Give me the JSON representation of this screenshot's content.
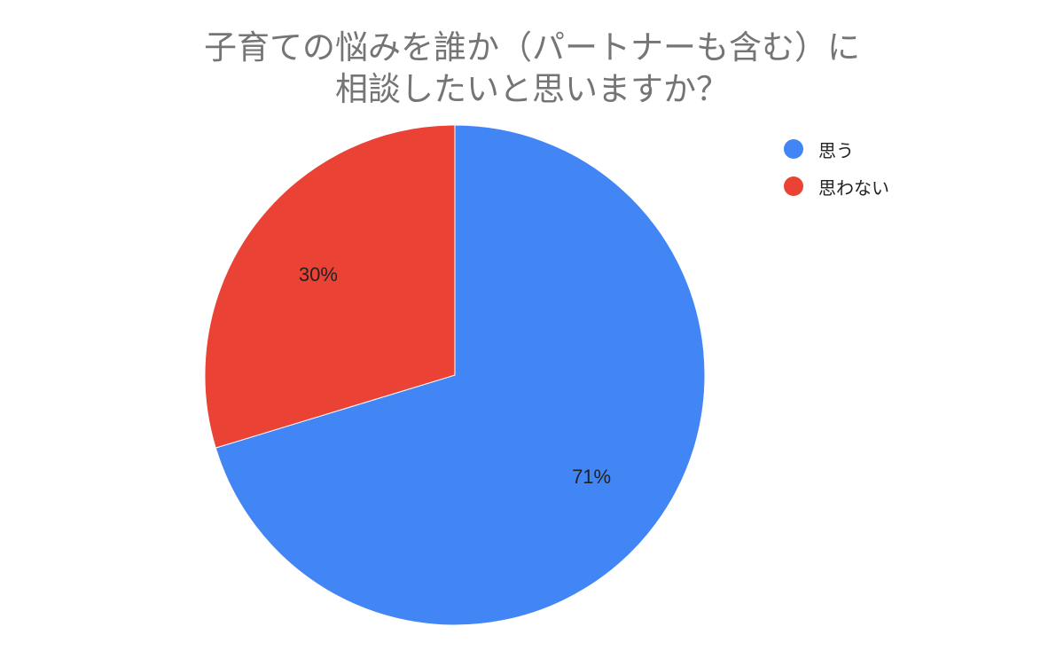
{
  "chart_data": {
    "type": "pie",
    "title_lines": [
      "子育ての悩みを誰か（パートナーも含む）に",
      "相談したいと思いますか？"
    ],
    "slices": [
      {
        "label": "思う",
        "value": 71,
        "value_label": "71%",
        "color": "#4285f4"
      },
      {
        "label": "思わない",
        "value": 30,
        "value_label": "30%",
        "color": "#ea4335"
      }
    ],
    "legend_position": "right"
  }
}
